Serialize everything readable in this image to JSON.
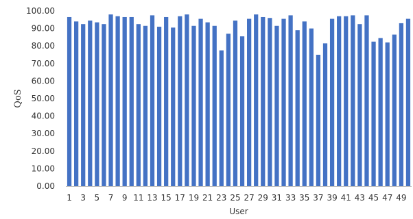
{
  "chart_data": {
    "type": "bar",
    "title": "",
    "xlabel": "User",
    "ylabel": "QoS",
    "ylim": [
      0,
      100
    ],
    "yticks": [
      "0.00",
      "10.00",
      "20.00",
      "30.00",
      "40.00",
      "50.00",
      "60.00",
      "70.00",
      "80.00",
      "90.00",
      "100.00"
    ],
    "categories": [
      "1",
      "2",
      "3",
      "4",
      "5",
      "6",
      "7",
      "8",
      "9",
      "10",
      "11",
      "12",
      "13",
      "14",
      "15",
      "16",
      "17",
      "18",
      "19",
      "20",
      "21",
      "22",
      "23",
      "24",
      "25",
      "26",
      "27",
      "28",
      "29",
      "30",
      "31",
      "32",
      "33",
      "34",
      "35",
      "36",
      "37",
      "38",
      "39",
      "40",
      "41",
      "42",
      "43",
      "44",
      "45",
      "46",
      "47",
      "48",
      "49",
      "50"
    ],
    "xtick_labels_shown": [
      "1",
      "3",
      "5",
      "7",
      "9",
      "11",
      "13",
      "15",
      "17",
      "19",
      "21",
      "23",
      "25",
      "27",
      "29",
      "31",
      "33",
      "35",
      "37",
      "39",
      "41",
      "43",
      "45",
      "47",
      "49"
    ],
    "values": [
      96.5,
      94.0,
      92.5,
      94.5,
      93.5,
      92.5,
      98.0,
      97.0,
      96.5,
      96.5,
      92.5,
      91.5,
      97.5,
      91.0,
      96.5,
      90.5,
      97.0,
      98.0,
      91.5,
      95.5,
      93.5,
      91.5,
      77.5,
      87.0,
      94.5,
      85.5,
      95.5,
      98.0,
      96.5,
      96.0,
      91.5,
      95.5,
      97.5,
      89.0,
      94.0,
      90.0,
      75.0,
      81.5,
      95.5,
      97.0,
      97.0,
      97.5,
      92.5,
      97.5,
      82.5,
      84.5,
      82.0,
      86.5,
      93.0,
      95.5
    ],
    "grid": false,
    "legend": "none",
    "bar_color": "#4472C4"
  }
}
